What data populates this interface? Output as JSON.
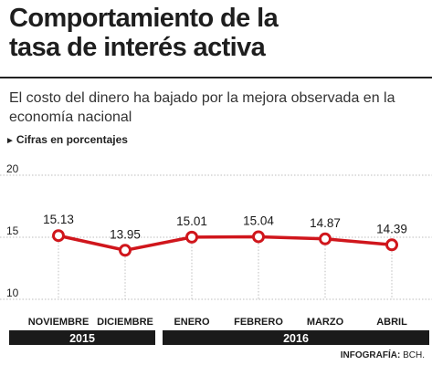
{
  "title": "Comportamiento de la tasa de interés activa",
  "title_lines": [
    "Comportamiento de la",
    "tasa de interés activa"
  ],
  "subtitle": "El costo del dinero ha bajado por la mejora observada en la economía nacional",
  "units": "Cifras en porcentajes",
  "footer": {
    "label": "INFOGRAFÍA:",
    "source": "BCH."
  },
  "colors": {
    "line": "#d0161c",
    "year_bar": "#1a1a1a",
    "grid": "#bdbdbd"
  },
  "chart_data": {
    "type": "line",
    "categories": [
      "NOVIEMBRE",
      "DICIEMBRE",
      "ENERO",
      "FEBRERO",
      "MARZO",
      "ABRIL"
    ],
    "values": [
      15.13,
      13.95,
      15.01,
      15.04,
      14.87,
      14.39
    ],
    "data_labels": [
      "15.13",
      "13.95",
      "15.01",
      "15.04",
      "14.87",
      "14.39"
    ],
    "yticks": [
      20,
      15,
      10
    ],
    "ylim": [
      10,
      20
    ],
    "grid": "horizontal-dotted",
    "year_groups": [
      {
        "label": "2015",
        "categories": [
          "NOVIEMBRE",
          "DICIEMBRE"
        ]
      },
      {
        "label": "2016",
        "categories": [
          "ENERO",
          "FEBRERO",
          "MARZO",
          "ABRIL"
        ]
      }
    ]
  }
}
